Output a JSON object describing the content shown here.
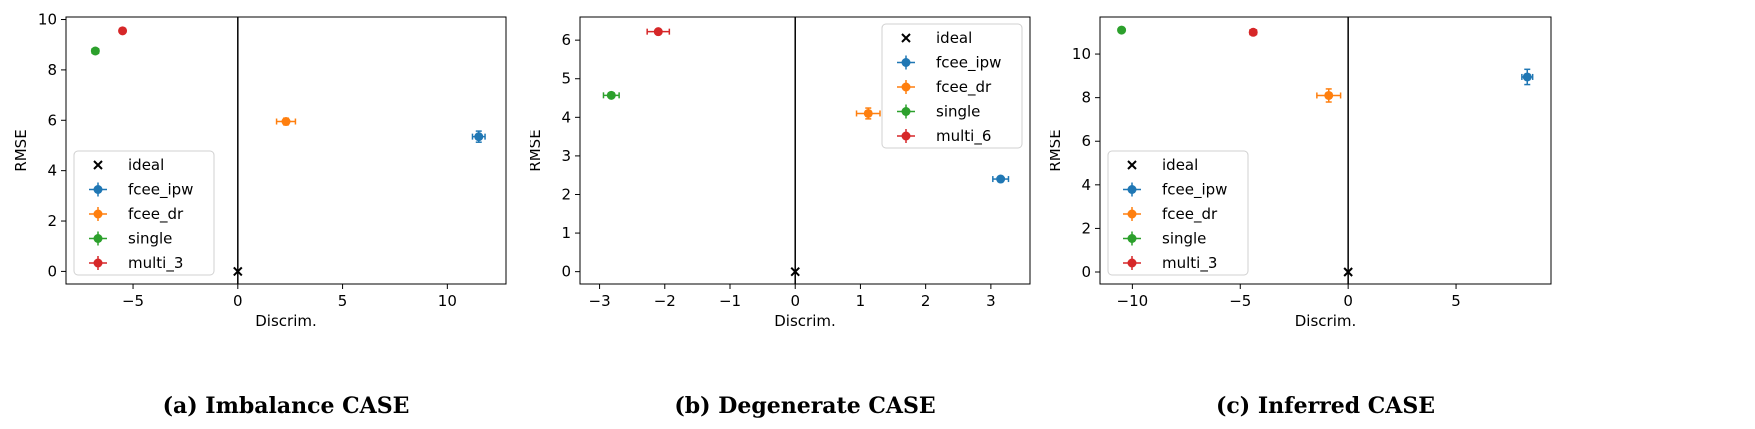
{
  "chart_data": [
    {
      "type": "scatter",
      "caption": "(a) Imbalance CASE",
      "xlabel": "Discrim.",
      "ylabel": "RMSE",
      "xlim": [
        -8.2,
        12.8
      ],
      "ylim": [
        -0.5,
        10.1
      ],
      "xticks": [
        -5,
        0,
        5,
        10
      ],
      "xtick_labels": [
        "−5",
        "0",
        "5",
        "10"
      ],
      "yticks": [
        0,
        2,
        4,
        6,
        8,
        10
      ],
      "ytick_labels": [
        "0",
        "2",
        "4",
        "6",
        "8",
        "10"
      ],
      "vline_x": 0,
      "legend_position": "lower-left",
      "series": [
        {
          "name": "ideal",
          "marker": "x",
          "color": "#000000",
          "x": 0,
          "y": 0
        },
        {
          "name": "fcee_ipw",
          "marker": "o",
          "color": "#1f77b4",
          "x": 11.5,
          "y": 5.35,
          "xerr": 0.3,
          "yerr": 0.22
        },
        {
          "name": "fcee_dr",
          "marker": "o",
          "color": "#ff7f0e",
          "x": 2.3,
          "y": 5.95,
          "xerr": 0.45,
          "yerr": 0.13
        },
        {
          "name": "single",
          "marker": "o",
          "color": "#2ca02c",
          "x": -6.8,
          "y": 8.75,
          "xerr": 0.15,
          "yerr": 0.05
        },
        {
          "name": "multi_3",
          "marker": "o",
          "color": "#d62728",
          "x": -5.5,
          "y": 9.55,
          "xerr": 0.1,
          "yerr": 0.03
        }
      ]
    },
    {
      "type": "scatter",
      "caption": "(b) Degenerate CASE",
      "xlabel": "Discrim.",
      "ylabel": "RMSE",
      "xlim": [
        -3.3,
        3.6
      ],
      "ylim": [
        -0.32,
        6.6
      ],
      "xticks": [
        -3,
        -2,
        -1,
        0,
        1,
        2,
        3
      ],
      "xtick_labels": [
        "−3",
        "−2",
        "−1",
        "0",
        "1",
        "2",
        "3"
      ],
      "yticks": [
        0,
        1,
        2,
        3,
        4,
        5,
        6
      ],
      "ytick_labels": [
        "0",
        "1",
        "2",
        "3",
        "4",
        "5",
        "6"
      ],
      "vline_x": 0,
      "legend_position": "upper-right",
      "series": [
        {
          "name": "ideal",
          "marker": "x",
          "color": "#000000",
          "x": 0,
          "y": 0
        },
        {
          "name": "fcee_ipw",
          "marker": "o",
          "color": "#1f77b4",
          "x": 3.15,
          "y": 2.4,
          "xerr": 0.12,
          "yerr": 0.04
        },
        {
          "name": "fcee_dr",
          "marker": "o",
          "color": "#ff7f0e",
          "x": 1.12,
          "y": 4.1,
          "xerr": 0.18,
          "yerr": 0.14
        },
        {
          "name": "single",
          "marker": "o",
          "color": "#2ca02c",
          "x": -2.82,
          "y": 4.57,
          "xerr": 0.12,
          "yerr": 0.04
        },
        {
          "name": "multi_6",
          "marker": "o",
          "color": "#d62728",
          "x": -2.1,
          "y": 6.22,
          "xerr": 0.17,
          "yerr": 0.03
        }
      ]
    },
    {
      "type": "scatter",
      "caption": "(c) Inferred CASE",
      "xlabel": "Discrim.",
      "ylabel": "RMSE",
      "xlim": [
        -11.5,
        9.4
      ],
      "ylim": [
        -0.55,
        11.7
      ],
      "xticks": [
        -10,
        -5,
        0,
        5
      ],
      "xtick_labels": [
        "−10",
        "−5",
        "0",
        "5"
      ],
      "yticks": [
        0,
        2,
        4,
        6,
        8,
        10
      ],
      "ytick_labels": [
        "0",
        "2",
        "4",
        "6",
        "8",
        "10"
      ],
      "vline_x": 0,
      "legend_position": "lower-left",
      "series": [
        {
          "name": "ideal",
          "marker": "x",
          "color": "#000000",
          "x": 0,
          "y": 0
        },
        {
          "name": "fcee_ipw",
          "marker": "o",
          "color": "#1f77b4",
          "x": 8.3,
          "y": 8.95,
          "xerr": 0.25,
          "yerr": 0.35
        },
        {
          "name": "fcee_dr",
          "marker": "o",
          "color": "#ff7f0e",
          "x": -0.9,
          "y": 8.1,
          "xerr": 0.55,
          "yerr": 0.3
        },
        {
          "name": "single",
          "marker": "o",
          "color": "#2ca02c",
          "x": -10.5,
          "y": 11.1,
          "xerr": 0.1,
          "yerr": 0.05
        },
        {
          "name": "multi_3",
          "marker": "o",
          "color": "#d62728",
          "x": -4.4,
          "y": 11.0,
          "xerr": 0.15,
          "yerr": 0.04
        }
      ]
    }
  ]
}
